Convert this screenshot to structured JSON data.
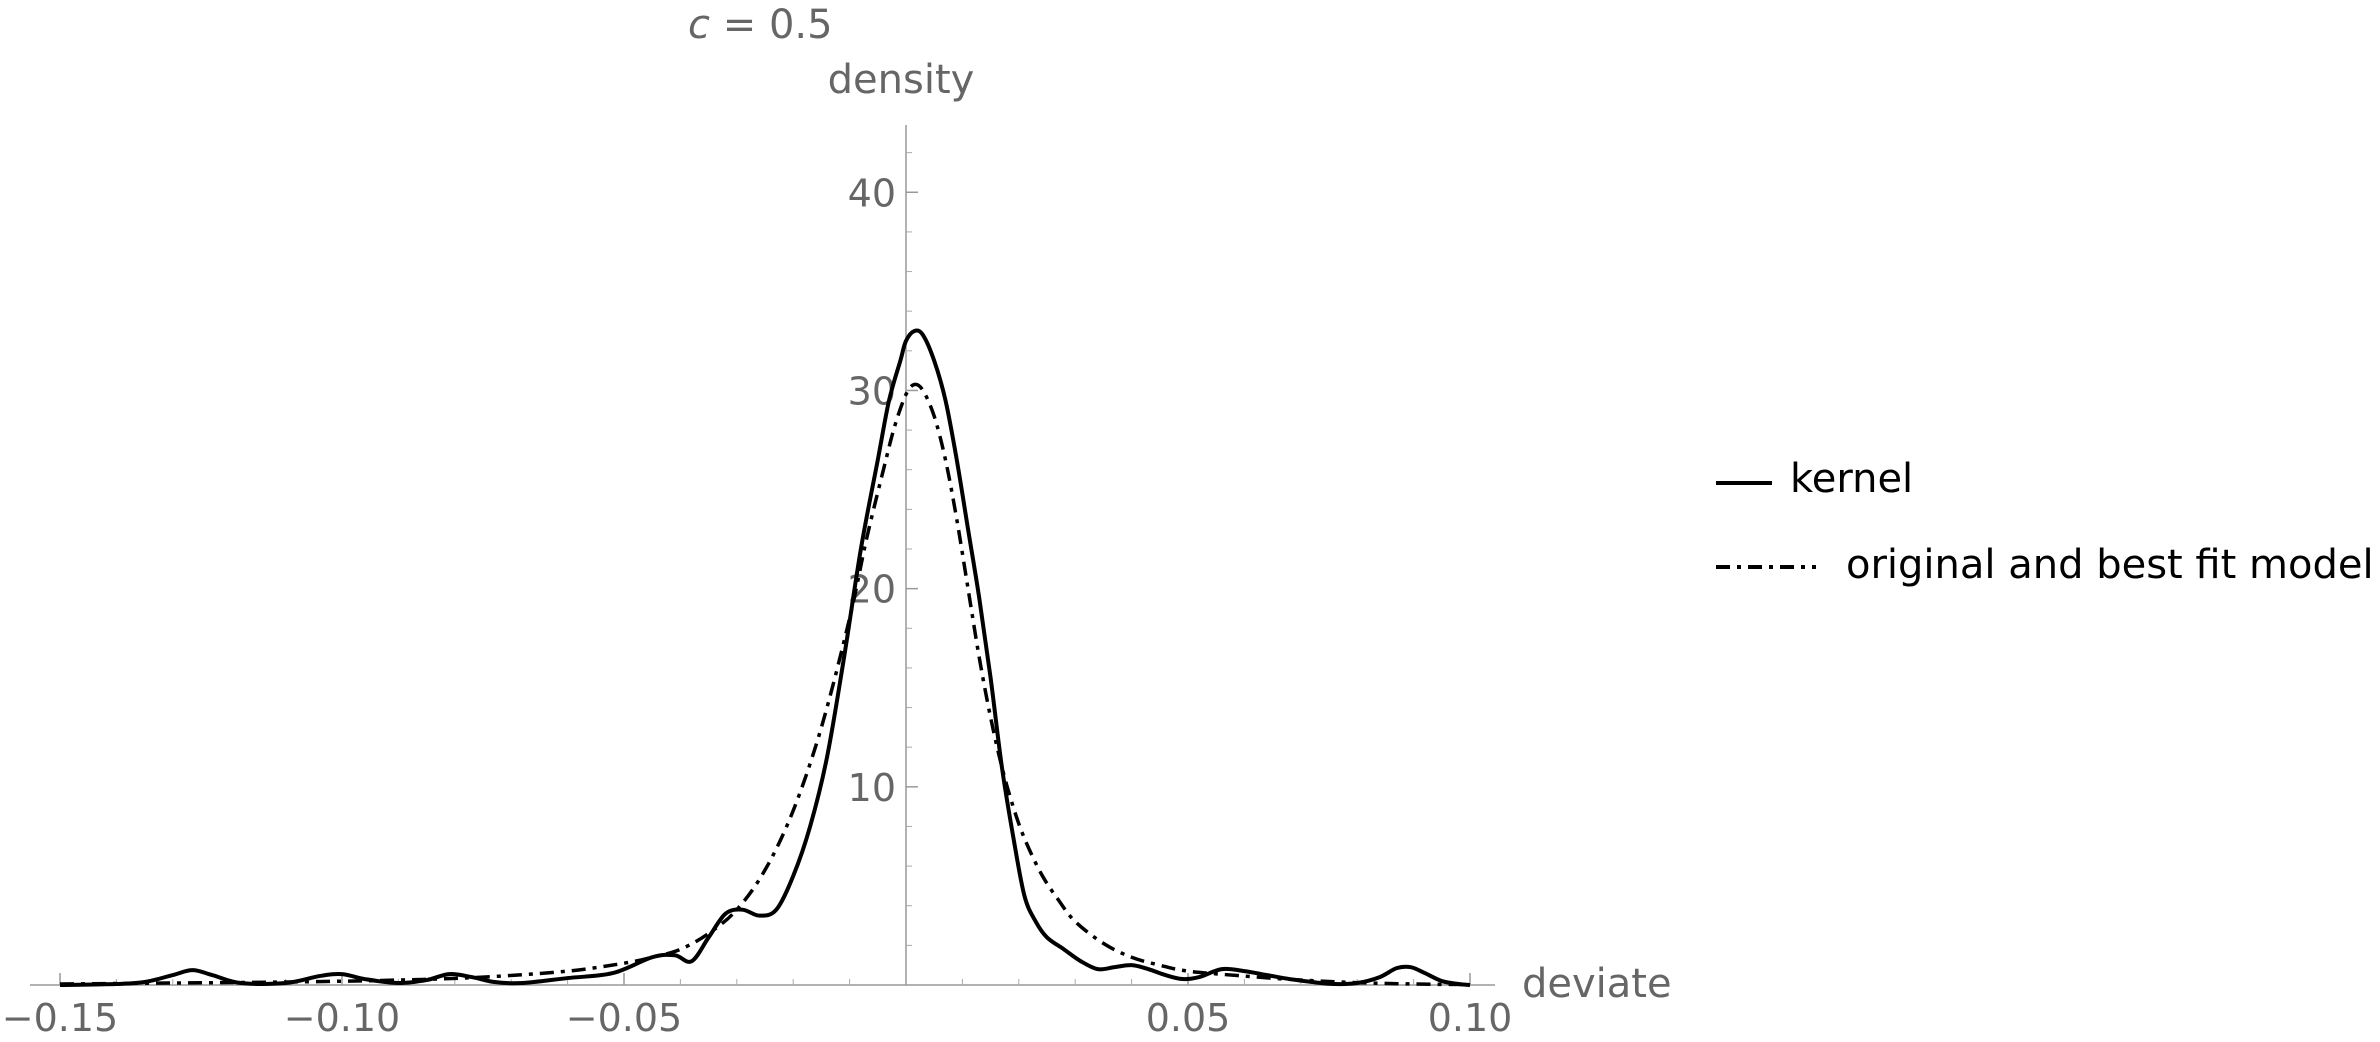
{
  "chart_data": {
    "type": "line",
    "title_italic": "c",
    "title_rest": " = 0.5",
    "xlabel": "deviate",
    "ylabel": "density",
    "xlim": [
      -0.15,
      0.1
    ],
    "ylim": [
      0,
      44
    ],
    "x_ticks": [
      -0.15,
      -0.1,
      -0.05,
      0.05,
      0.1
    ],
    "x_tick_labels": [
      "−0.15",
      "−0.10",
      "−0.05",
      "0.05",
      "0.10"
    ],
    "y_ticks": [
      10,
      20,
      30,
      40
    ],
    "y_tick_labels": [
      "10",
      "20",
      "30",
      "40"
    ],
    "grid": false,
    "legend_position": "right",
    "series": [
      {
        "name": "kernel",
        "style": "solid",
        "color": "#000000",
        "x": [
          -0.15,
          -0.14,
          -0.135,
          -0.13,
          -0.1265,
          -0.123,
          -0.118,
          -0.11,
          -0.104,
          -0.1,
          -0.096,
          -0.09,
          -0.085,
          -0.081,
          -0.077,
          -0.073,
          -0.068,
          -0.06,
          -0.052,
          -0.045,
          -0.041,
          -0.038,
          -0.035,
          -0.032,
          -0.029,
          -0.026,
          -0.023,
          -0.02,
          -0.017,
          -0.014,
          -0.011,
          -0.008,
          -0.005,
          -0.003,
          -0.001,
          0.0,
          0.0015,
          0.003,
          0.005,
          0.007,
          0.009,
          0.011,
          0.013,
          0.015,
          0.017,
          0.019,
          0.021,
          0.023,
          0.025,
          0.028,
          0.031,
          0.034,
          0.037,
          0.04,
          0.043,
          0.046,
          0.049,
          0.052,
          0.056,
          0.06,
          0.064,
          0.068,
          0.072,
          0.076,
          0.08,
          0.084,
          0.087,
          0.0895,
          0.092,
          0.095,
          0.098,
          0.1
        ],
        "y": [
          0.0,
          0.05,
          0.15,
          0.5,
          0.75,
          0.5,
          0.1,
          0.1,
          0.45,
          0.55,
          0.3,
          0.1,
          0.25,
          0.55,
          0.4,
          0.15,
          0.1,
          0.35,
          0.6,
          1.4,
          1.5,
          1.2,
          2.4,
          3.6,
          3.8,
          3.5,
          3.8,
          5.5,
          8.0,
          11.5,
          16.5,
          22.0,
          26.5,
          29.5,
          31.5,
          32.5,
          33.0,
          32.8,
          31.5,
          29.5,
          26.5,
          23.0,
          19.5,
          15.5,
          11.0,
          7.5,
          4.5,
          3.2,
          2.4,
          1.8,
          1.2,
          0.8,
          0.9,
          1.0,
          0.8,
          0.5,
          0.3,
          0.4,
          0.8,
          0.7,
          0.5,
          0.3,
          0.15,
          0.05,
          0.1,
          0.4,
          0.85,
          0.9,
          0.6,
          0.2,
          0.05,
          0.0
        ]
      },
      {
        "name": "original and best fit model",
        "style": "dashdot",
        "color": "#000000",
        "x": [
          -0.15,
          -0.13,
          -0.11,
          -0.09,
          -0.075,
          -0.06,
          -0.05,
          -0.045,
          -0.04,
          -0.035,
          -0.03,
          -0.025,
          -0.02,
          -0.015,
          -0.01,
          -0.007,
          -0.004,
          -0.002,
          0.0,
          0.0015,
          0.003,
          0.005,
          0.007,
          0.009,
          0.011,
          0.013,
          0.015,
          0.017,
          0.019,
          0.021,
          0.024,
          0.027,
          0.03,
          0.035,
          0.04,
          0.045,
          0.05,
          0.06,
          0.07,
          0.08,
          0.09,
          0.1
        ],
        "y": [
          0.05,
          0.1,
          0.15,
          0.25,
          0.4,
          0.7,
          1.1,
          1.4,
          1.8,
          2.6,
          3.8,
          5.8,
          8.8,
          13.0,
          18.5,
          22.5,
          26.0,
          28.2,
          29.8,
          30.3,
          30.0,
          28.7,
          26.5,
          23.5,
          20.0,
          16.5,
          13.5,
          11.0,
          9.0,
          7.4,
          5.6,
          4.3,
          3.2,
          2.1,
          1.4,
          1.0,
          0.7,
          0.45,
          0.25,
          0.12,
          0.05,
          0.02
        ]
      }
    ]
  }
}
